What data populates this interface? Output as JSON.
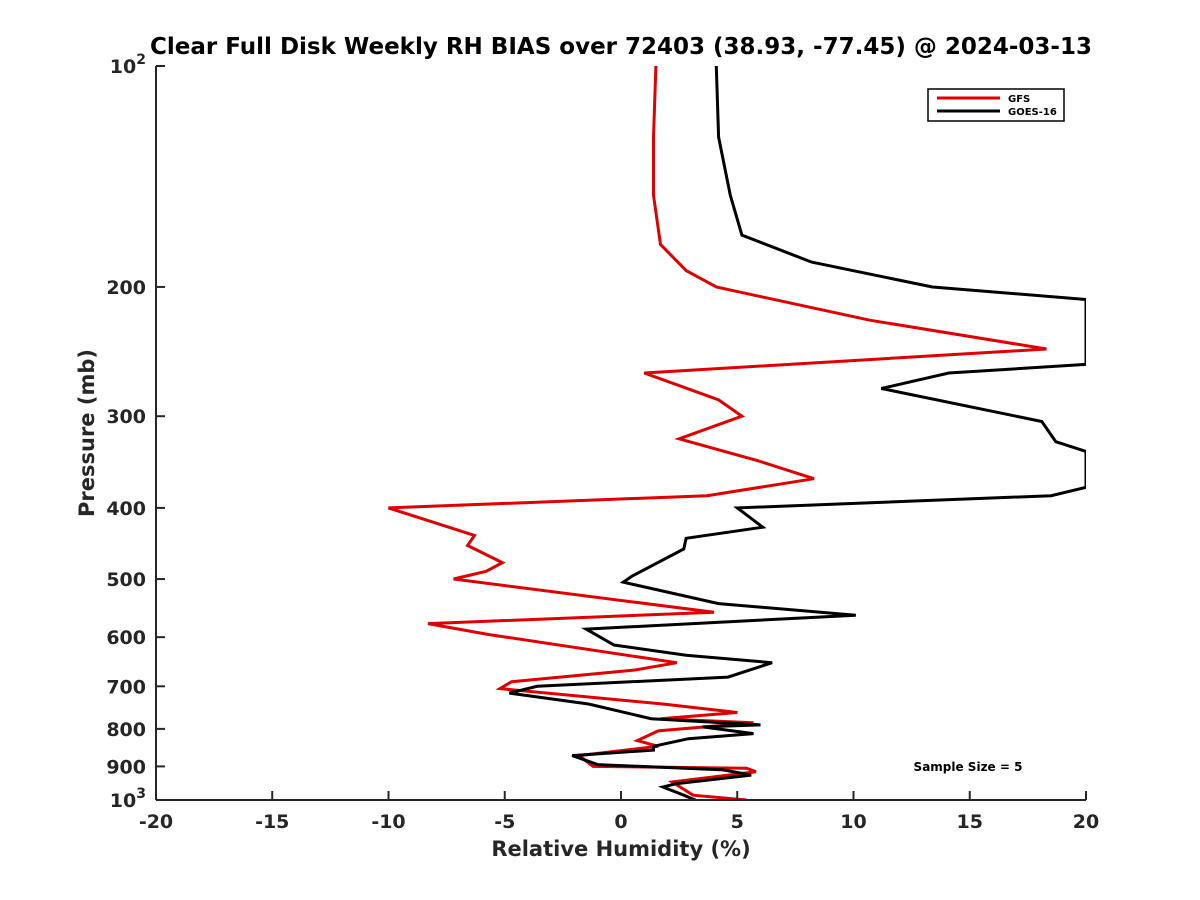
{
  "chart_data": {
    "type": "line",
    "title": "Clear Full Disk Weekly RH BIAS over 72403 (38.93, -77.45) @ 2024-03-13",
    "xlabel": "Relative Humidity (%)",
    "ylabel": "Pressure (mb)",
    "xlim": [
      -20,
      20
    ],
    "ylim": [
      100,
      1000
    ],
    "y_scale": "log",
    "y_reversed": true,
    "grid": false,
    "legend_position": "top-right",
    "x_ticks": [
      "-20",
      "-15",
      "-10",
      "-5",
      "0",
      "5",
      "10",
      "15",
      "20"
    ],
    "x_tick_values": [
      -20,
      -15,
      -10,
      -5,
      0,
      5,
      10,
      15,
      20
    ],
    "y_ticks": [
      {
        "value": 100,
        "base": "10",
        "exp": "2"
      },
      {
        "value": 200,
        "base": "200",
        "exp": ""
      },
      {
        "value": 300,
        "base": "300",
        "exp": ""
      },
      {
        "value": 400,
        "base": "400",
        "exp": ""
      },
      {
        "value": 500,
        "base": "500",
        "exp": ""
      },
      {
        "value": 600,
        "base": "600",
        "exp": ""
      },
      {
        "value": 700,
        "base": "700",
        "exp": ""
      },
      {
        "value": 800,
        "base": "800",
        "exp": ""
      },
      {
        "value": 900,
        "base": "900",
        "exp": ""
      },
      {
        "value": 1000,
        "base": "10",
        "exp": "3"
      }
    ],
    "series": [
      {
        "name": "GFS",
        "color": "#e00000",
        "points": [
          [
            1.5,
            100
          ],
          [
            1.4,
            125
          ],
          [
            1.4,
            150
          ],
          [
            1.7,
            175
          ],
          [
            2.8,
            190
          ],
          [
            4.1,
            200
          ],
          [
            10.7,
            222
          ],
          [
            18.3,
            243
          ],
          [
            1.0,
            262
          ],
          [
            4.2,
            285
          ],
          [
            5.2,
            300
          ],
          [
            2.5,
            322
          ],
          [
            5.9,
            345
          ],
          [
            8.3,
            365
          ],
          [
            3.7,
            385
          ],
          [
            -10.0,
            400
          ],
          [
            -6.3,
            436
          ],
          [
            -6.6,
            450
          ],
          [
            -5.1,
            475
          ],
          [
            -5.8,
            488
          ],
          [
            -7.2,
            500
          ],
          [
            4.0,
            555
          ],
          [
            -8.3,
            575
          ],
          [
            -5.7,
            595
          ],
          [
            2.4,
            650
          ],
          [
            0.6,
            665
          ],
          [
            -4.7,
            690
          ],
          [
            -5.2,
            705
          ],
          [
            1.8,
            740
          ],
          [
            5.0,
            760
          ],
          [
            1.7,
            775
          ],
          [
            5.7,
            785
          ],
          [
            1.6,
            805
          ],
          [
            0.7,
            830
          ],
          [
            1.6,
            845
          ],
          [
            -1.8,
            870
          ],
          [
            -1.2,
            900
          ],
          [
            5.4,
            905
          ],
          [
            5.8,
            915
          ],
          [
            2.2,
            945
          ],
          [
            3.1,
            985
          ],
          [
            5.4,
            1000
          ]
        ]
      },
      {
        "name": "GOES-16",
        "color": "#000000",
        "points": [
          [
            4.1,
            100
          ],
          [
            4.2,
            125
          ],
          [
            4.7,
            150
          ],
          [
            5.2,
            170
          ],
          [
            8.2,
            185
          ],
          [
            13.4,
            200
          ],
          [
            20.0,
            208
          ],
          [
            20.0,
            255
          ],
          [
            14.1,
            262
          ],
          [
            11.2,
            275
          ],
          [
            18.1,
            305
          ],
          [
            18.7,
            325
          ],
          [
            20.0,
            335
          ],
          [
            20.0,
            375
          ],
          [
            18.5,
            385
          ],
          [
            5.0,
            400
          ],
          [
            6.1,
            425
          ],
          [
            2.8,
            440
          ],
          [
            2.7,
            455
          ],
          [
            0.5,
            495
          ],
          [
            0.1,
            505
          ],
          [
            4.2,
            540
          ],
          [
            10.1,
            560
          ],
          [
            -1.5,
            585
          ],
          [
            -0.3,
            615
          ],
          [
            2.8,
            635
          ],
          [
            6.5,
            650
          ],
          [
            4.6,
            680
          ],
          [
            -3.6,
            700
          ],
          [
            -4.8,
            715
          ],
          [
            -1.4,
            740
          ],
          [
            1.3,
            775
          ],
          [
            6.0,
            790
          ],
          [
            3.5,
            795
          ],
          [
            5.7,
            812
          ],
          [
            2.9,
            825
          ],
          [
            1.4,
            845
          ],
          [
            1.4,
            855
          ],
          [
            -2.1,
            870
          ],
          [
            -1.0,
            895
          ],
          [
            4.4,
            910
          ],
          [
            5.6,
            925
          ],
          [
            2.4,
            950
          ],
          [
            1.8,
            960
          ],
          [
            2.7,
            985
          ],
          [
            3.2,
            1000
          ]
        ]
      }
    ],
    "legend": [
      {
        "label": "GFS",
        "color": "#e00000"
      },
      {
        "label": "GOES-16",
        "color": "#000000"
      }
    ],
    "annotation": "Sample Size = 5"
  }
}
